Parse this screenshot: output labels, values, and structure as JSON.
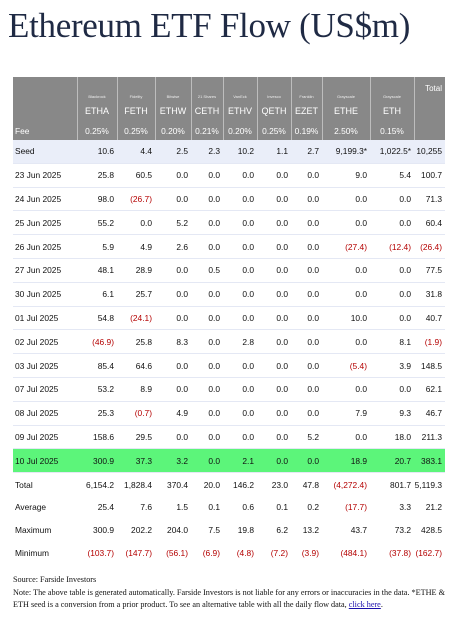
{
  "page": {
    "title": "Ethereum ETF Flow (US$m)"
  },
  "table": {
    "issuers": [
      "Blackrock",
      "Fidelity",
      "Bitwise",
      "21 Shares",
      "VanEck",
      "Invesco",
      "Franklin",
      "Grayscale",
      "Grayscale"
    ],
    "total_header": "Total",
    "tickers": [
      "ETHA",
      "FETH",
      "ETHW",
      "CETH",
      "ETHV",
      "QETH",
      "EZET",
      "ETHE",
      "ETH"
    ],
    "fee_label": "Fee",
    "fees": [
      "0.25%",
      "0.25%",
      "0.20%",
      "0.21%",
      "0.20%",
      "0.25%",
      "0.19%",
      "2.50%",
      "0.15%"
    ],
    "rows": [
      {
        "label": "Seed",
        "values": [
          "10.6",
          "4.4",
          "2.5",
          "2.3",
          "10.2",
          "1.1",
          "2.7",
          "9,199.3*",
          "1,022.5*"
        ],
        "total": "10,255"
      },
      {
        "label": "23 Jun 2025",
        "values": [
          "25.8",
          "60.5",
          "0.0",
          "0.0",
          "0.0",
          "0.0",
          "0.0",
          "9.0",
          "5.4"
        ],
        "total": "100.7"
      },
      {
        "label": "24 Jun 2025",
        "values": [
          "98.0",
          "(26.7)",
          "0.0",
          "0.0",
          "0.0",
          "0.0",
          "0.0",
          "0.0",
          "0.0"
        ],
        "total": "71.3"
      },
      {
        "label": "25 Jun 2025",
        "values": [
          "55.2",
          "0.0",
          "5.2",
          "0.0",
          "0.0",
          "0.0",
          "0.0",
          "0.0",
          "0.0"
        ],
        "total": "60.4"
      },
      {
        "label": "26 Jun 2025",
        "values": [
          "5.9",
          "4.9",
          "2.6",
          "0.0",
          "0.0",
          "0.0",
          "0.0",
          "(27.4)",
          "(12.4)"
        ],
        "total": "(26.4)"
      },
      {
        "label": "27 Jun 2025",
        "values": [
          "48.1",
          "28.9",
          "0.0",
          "0.5",
          "0.0",
          "0.0",
          "0.0",
          "0.0",
          "0.0"
        ],
        "total": "77.5"
      },
      {
        "label": "30 Jun 2025",
        "values": [
          "6.1",
          "25.7",
          "0.0",
          "0.0",
          "0.0",
          "0.0",
          "0.0",
          "0.0",
          "0.0"
        ],
        "total": "31.8"
      },
      {
        "label": "01 Jul 2025",
        "values": [
          "54.8",
          "(24.1)",
          "0.0",
          "0.0",
          "0.0",
          "0.0",
          "0.0",
          "10.0",
          "0.0"
        ],
        "total": "40.7"
      },
      {
        "label": "02 Jul 2025",
        "values": [
          "(46.9)",
          "25.8",
          "8.3",
          "0.0",
          "2.8",
          "0.0",
          "0.0",
          "0.0",
          "8.1"
        ],
        "total": "(1.9)"
      },
      {
        "label": "03 Jul 2025",
        "values": [
          "85.4",
          "64.6",
          "0.0",
          "0.0",
          "0.0",
          "0.0",
          "0.0",
          "(5.4)",
          "3.9"
        ],
        "total": "148.5"
      },
      {
        "label": "07 Jul 2025",
        "values": [
          "53.2",
          "8.9",
          "0.0",
          "0.0",
          "0.0",
          "0.0",
          "0.0",
          "0.0",
          "0.0"
        ],
        "total": "62.1"
      },
      {
        "label": "08 Jul 2025",
        "values": [
          "25.3",
          "(0.7)",
          "4.9",
          "0.0",
          "0.0",
          "0.0",
          "0.0",
          "7.9",
          "9.3"
        ],
        "total": "46.7"
      },
      {
        "label": "09 Jul 2025",
        "values": [
          "158.6",
          "29.5",
          "0.0",
          "0.0",
          "0.0",
          "0.0",
          "5.2",
          "0.0",
          "18.0"
        ],
        "total": "211.3"
      },
      {
        "label": "10 Jul 2025",
        "values": [
          "300.9",
          "37.3",
          "3.2",
          "0.0",
          "2.1",
          "0.0",
          "0.0",
          "18.9",
          "20.7"
        ],
        "total": "383.1"
      }
    ],
    "summary": [
      {
        "label": "Total",
        "values": [
          "6,154.2",
          "1,828.4",
          "370.4",
          "20.0",
          "146.2",
          "23.0",
          "47.8",
          "(4,272.4)",
          "801.7"
        ],
        "total": "5,119.3"
      },
      {
        "label": "Average",
        "values": [
          "25.4",
          "7.6",
          "1.5",
          "0.1",
          "0.6",
          "0.1",
          "0.2",
          "(17.7)",
          "3.3"
        ],
        "total": "21.2"
      },
      {
        "label": "Maximum",
        "values": [
          "300.9",
          "202.2",
          "204.0",
          "7.5",
          "19.8",
          "6.2",
          "13.2",
          "43.7",
          "73.2"
        ],
        "total": "428.5"
      },
      {
        "label": "Minimum",
        "values": [
          "(103.7)",
          "(147.7)",
          "(56.1)",
          "(6.9)",
          "(4.8)",
          "(7.2)",
          "(3.9)",
          "(484.1)",
          "(37.8)"
        ],
        "total": "(162.7)"
      }
    ]
  },
  "notes": {
    "source": "Source: Farside Investors",
    "note": "Note: The above table is generated automatically. Farside Investors is not liable for any errors or inaccuracies in the data. *ETHE & ETH seed is a conversion from a prior product.  To see an alternative table with all the daily flow data, ",
    "link": "click here",
    "end": "."
  },
  "watermark": "金色财经",
  "colors": {
    "header_bg": "#888888",
    "seed_row_bg": "#eaeef9",
    "highlight_row_bg": "#5cf57a",
    "negative": "#b40000"
  }
}
